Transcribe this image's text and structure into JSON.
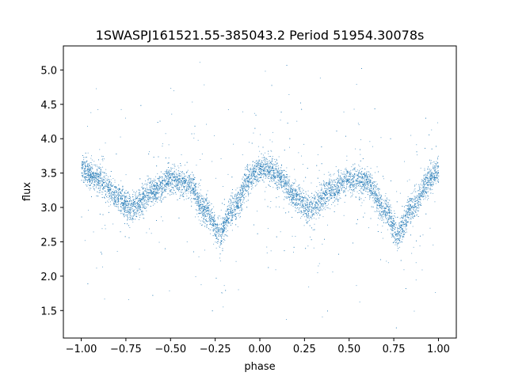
{
  "chart_data": {
    "type": "scatter",
    "title": "1SWASPJ161521.55-385043.2 Period 51954.30078s",
    "xlabel": "phase",
    "ylabel": "flux",
    "xlim": [
      -1.1,
      1.1
    ],
    "ylim": [
      1.1,
      5.35
    ],
    "x_ticks": [
      -1.0,
      -0.75,
      -0.5,
      -0.25,
      0.0,
      0.25,
      0.5,
      0.75,
      1.0
    ],
    "x_tick_labels": [
      "−1.00",
      "−0.75",
      "−0.50",
      "−0.25",
      "0.00",
      "0.25",
      "0.50",
      "0.75",
      "1.00"
    ],
    "y_ticks": [
      1.5,
      2.0,
      2.5,
      3.0,
      3.5,
      4.0,
      4.5,
      5.0
    ],
    "y_tick_labels": [
      "1.5",
      "2.0",
      "2.5",
      "3.0",
      "3.5",
      "4.0",
      "4.5",
      "5.0"
    ],
    "grid": false,
    "marker_color": "#1f77b4",
    "phase_range": [
      -1.0,
      1.0
    ],
    "light_curve": {
      "phase": [
        -1.0,
        -0.9,
        -0.8,
        -0.72,
        -0.6,
        -0.5,
        -0.4,
        -0.3,
        -0.23,
        -0.15,
        -0.05,
        0.0,
        0.05,
        0.1,
        0.2,
        0.28,
        0.4,
        0.5,
        0.6,
        0.7,
        0.77,
        0.85,
        0.95,
        1.0
      ],
      "flux": [
        3.55,
        3.42,
        3.15,
        3.0,
        3.25,
        3.4,
        3.35,
        2.95,
        2.62,
        3.0,
        3.45,
        3.55,
        3.55,
        3.45,
        3.15,
        3.0,
        3.25,
        3.4,
        3.35,
        2.95,
        2.62,
        3.0,
        3.42,
        3.55
      ],
      "scatter": 0.1
    },
    "n_points": 9000
  }
}
